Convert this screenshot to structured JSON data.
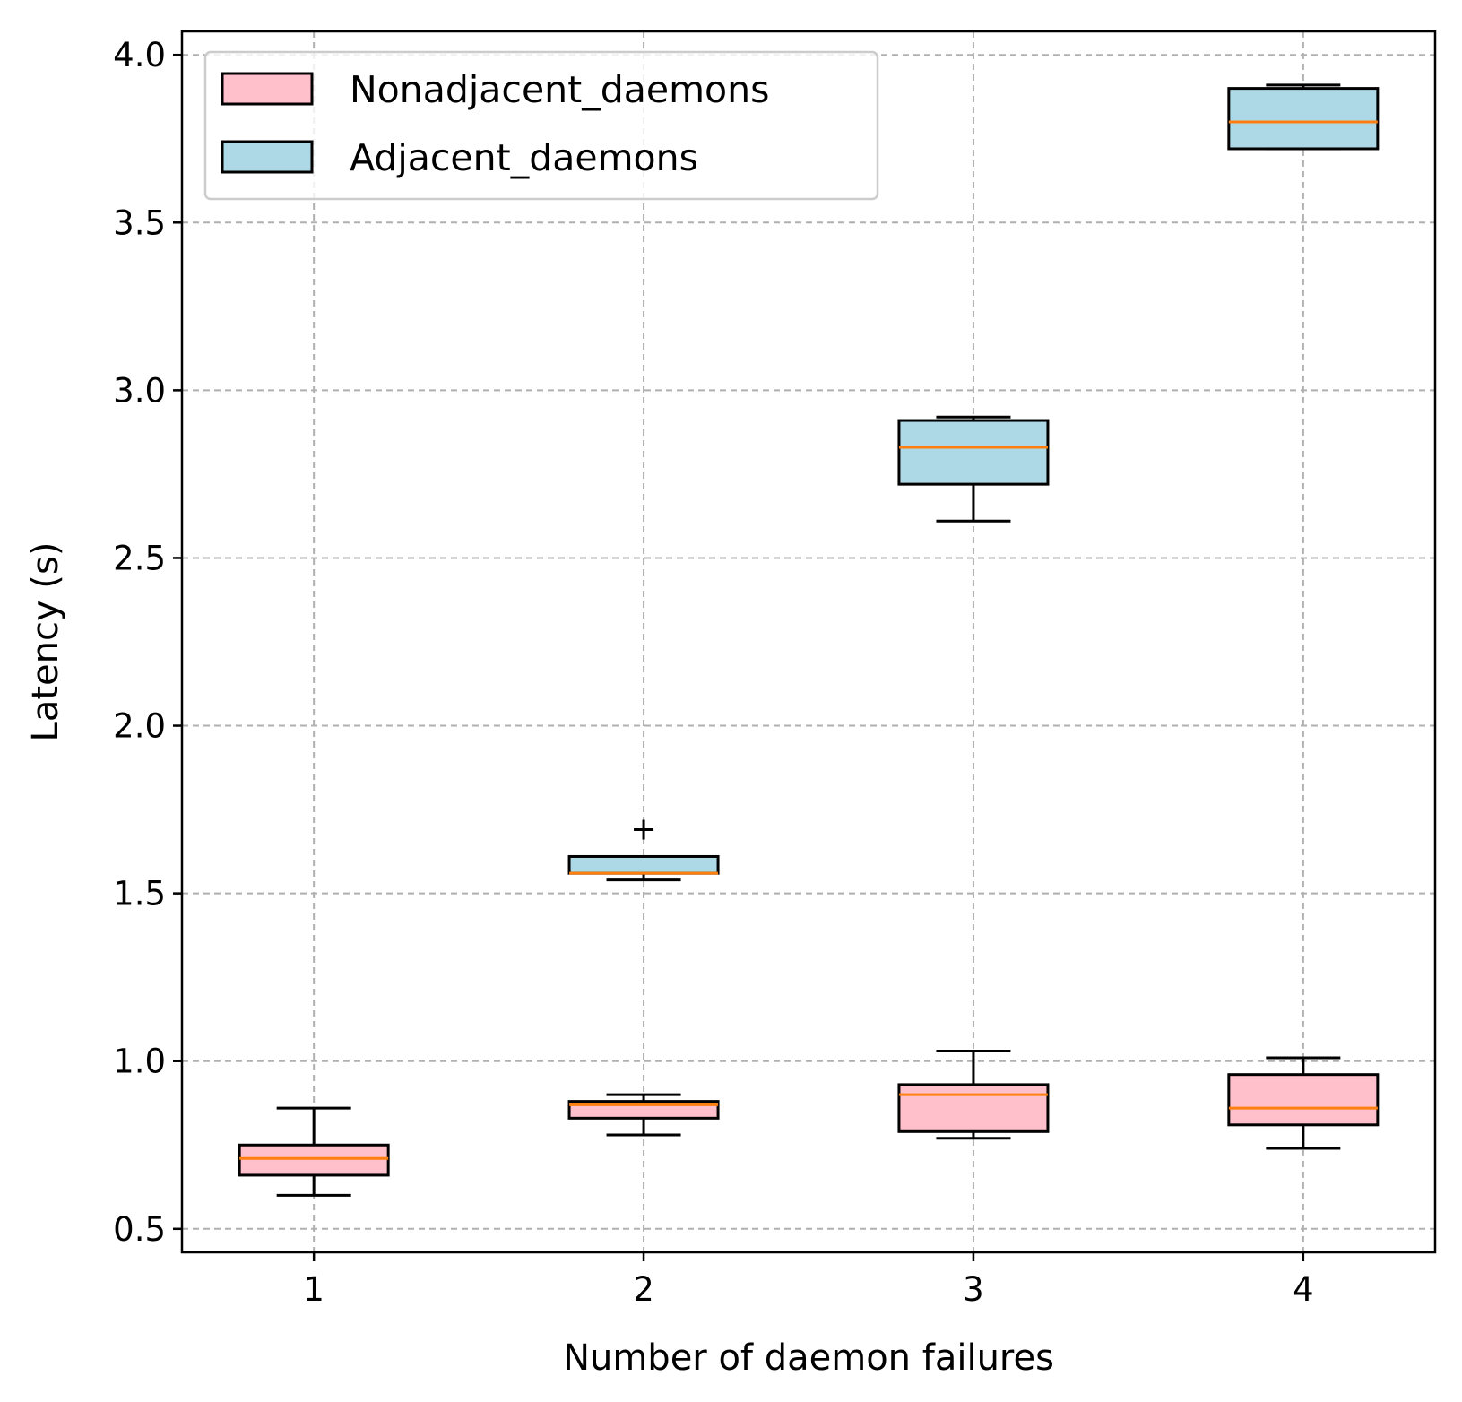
{
  "chart_data": {
    "type": "box",
    "xlabel": "Number of daemon failures",
    "ylabel": "Latency (s)",
    "categories": [
      "1",
      "2",
      "3",
      "4"
    ],
    "ylim": [
      0.43,
      4.07
    ],
    "yticks": [
      0.5,
      1.0,
      1.5,
      2.0,
      2.5,
      3.0,
      3.5,
      4.0
    ],
    "ytick_labels": [
      "0.5",
      "1.0",
      "1.5",
      "2.0",
      "2.5",
      "3.0",
      "3.5",
      "4.0"
    ],
    "grid": true,
    "legend_position": "top-left",
    "median_color": "#ff7f0e",
    "series": [
      {
        "name": "Nonadjacent_daemons",
        "color": "#ffc0cb",
        "boxes": [
          {
            "category": "1",
            "whisker_low": 0.6,
            "q1": 0.66,
            "median": 0.71,
            "q3": 0.75,
            "whisker_high": 0.86,
            "outliers": []
          },
          {
            "category": "2",
            "whisker_low": 0.78,
            "q1": 0.83,
            "median": 0.87,
            "q3": 0.88,
            "whisker_high": 0.9,
            "outliers": []
          },
          {
            "category": "3",
            "whisker_low": 0.77,
            "q1": 0.79,
            "median": 0.9,
            "q3": 0.93,
            "whisker_high": 1.03,
            "outliers": []
          },
          {
            "category": "4",
            "whisker_low": 0.74,
            "q1": 0.81,
            "median": 0.86,
            "q3": 0.96,
            "whisker_high": 1.01,
            "outliers": []
          }
        ]
      },
      {
        "name": "Adjacent_daemons",
        "color": "#add8e6",
        "boxes": [
          {
            "category": "2",
            "whisker_low": 1.54,
            "q1": 1.56,
            "median": 1.56,
            "q3": 1.61,
            "whisker_high": 1.61,
            "outliers": [
              1.69
            ]
          },
          {
            "category": "3",
            "whisker_low": 2.61,
            "q1": 2.72,
            "median": 2.83,
            "q3": 2.91,
            "whisker_high": 2.92,
            "outliers": []
          },
          {
            "category": "4",
            "whisker_low": 3.72,
            "q1": 3.72,
            "median": 3.8,
            "q3": 3.9,
            "whisker_high": 3.91,
            "outliers": []
          }
        ]
      }
    ]
  }
}
